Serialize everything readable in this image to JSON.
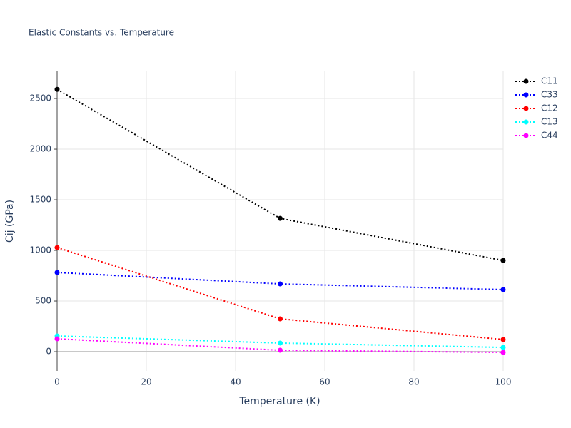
{
  "chart_data": {
    "type": "line",
    "title": "Elastic Constants vs. Temperature",
    "x_label": "Temperature (K)",
    "y_label": "Cij (GPa)",
    "x": [
      0,
      50,
      100
    ],
    "series": [
      {
        "name": "C11",
        "color": "#000000",
        "values": [
          2590,
          1316,
          901
        ]
      },
      {
        "name": "C33",
        "color": "#0000ff",
        "values": [
          782,
          669,
          613
        ]
      },
      {
        "name": "C12",
        "color": "#ff0000",
        "values": [
          1028,
          324,
          120
        ]
      },
      {
        "name": "C13",
        "color": "#00ffff",
        "values": [
          155,
          85,
          42
        ]
      },
      {
        "name": "C44",
        "color": "#ff00ff",
        "values": [
          127,
          14,
          -7
        ]
      }
    ],
    "xlim": [
      0,
      100
    ],
    "xticks": [
      0,
      20,
      40,
      60,
      80,
      100
    ],
    "ylim": [
      -190,
      2768
    ],
    "yticks": [
      0,
      500,
      1000,
      1500,
      2000,
      2500
    ],
    "grid": true,
    "legend": "right"
  }
}
